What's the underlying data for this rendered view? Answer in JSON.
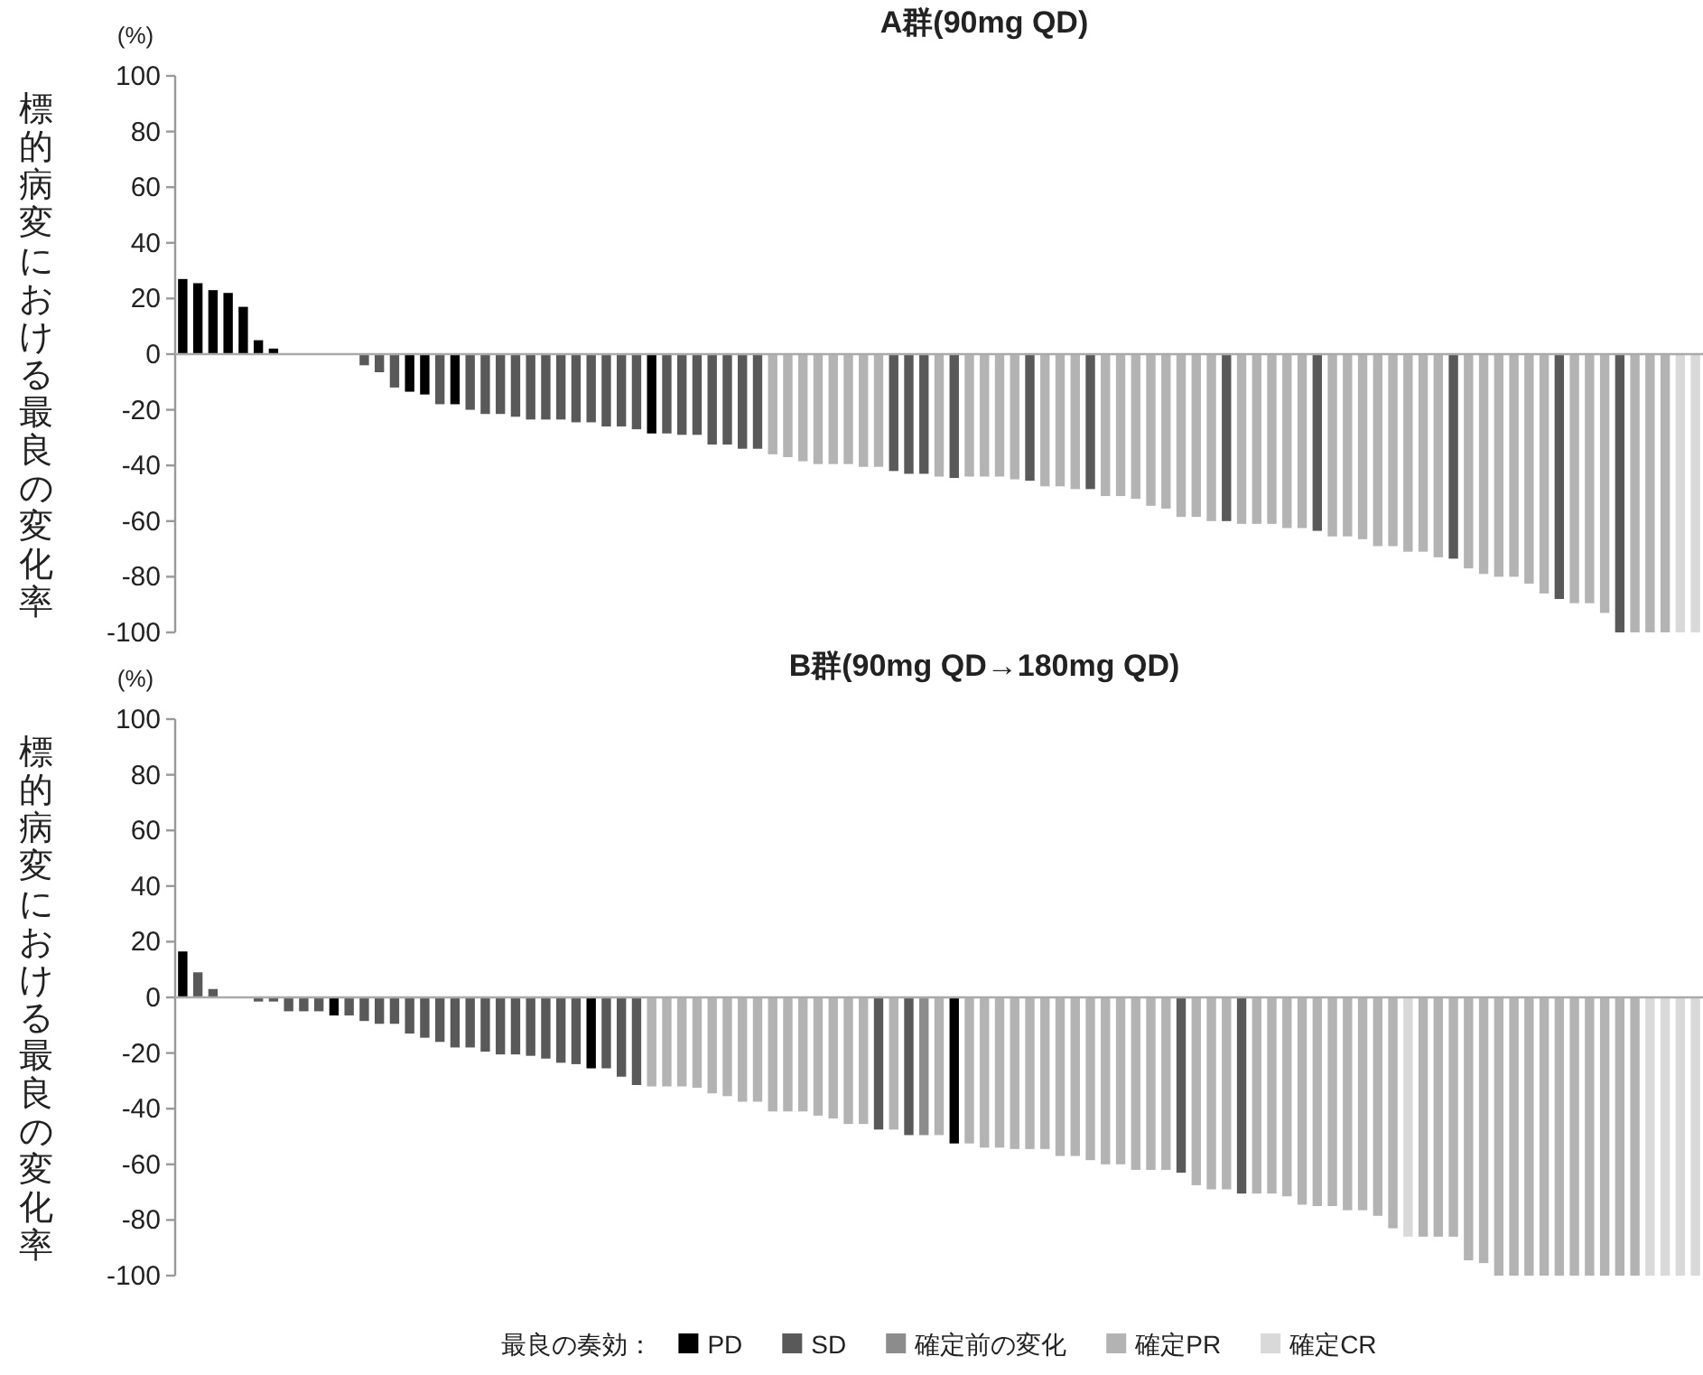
{
  "chart_data": [
    {
      "type": "bar",
      "title": "A群(90mg QD)",
      "ylabel": "標的病変における最良の変化率",
      "annotations": [
        "(%)"
      ],
      "categories": [
        null,
        null,
        null,
        null,
        null,
        null,
        null,
        null,
        null,
        null,
        null,
        null,
        null,
        null,
        null,
        null,
        null,
        null,
        null,
        null,
        null,
        null,
        null,
        null,
        null,
        null,
        null,
        null,
        null,
        null,
        null,
        null,
        null,
        null,
        null,
        null,
        null,
        null,
        null,
        null,
        null,
        null,
        null,
        null,
        null,
        null,
        null,
        null,
        null,
        null,
        null,
        null,
        null,
        null,
        null,
        null,
        null,
        null,
        null,
        null,
        null,
        null,
        null,
        null,
        null,
        null,
        null,
        null,
        null,
        null,
        null,
        null,
        null,
        null,
        null,
        null,
        null,
        null,
        null,
        null,
        null,
        null,
        null,
        null,
        null,
        null,
        null,
        null,
        null,
        null,
        null,
        null,
        null,
        null,
        null,
        null,
        null,
        null,
        null,
        null,
        null
      ],
      "stacked": true,
      "ylim": [
        -100,
        100
      ],
      "yticks": [
        -100,
        -80,
        -60,
        -40,
        -20,
        0,
        20,
        40,
        60,
        80,
        100
      ],
      "series": [
        {
          "color": "#000000",
          "values": [
            27,
            25.5,
            23,
            22,
            17,
            5,
            2,
            null,
            null,
            null,
            null,
            null,
            null,
            null,
            null,
            -13.5,
            -14.5,
            null,
            -18,
            null,
            null,
            null,
            null,
            null,
            null,
            null,
            null,
            null,
            null,
            null,
            null,
            -28.5,
            null,
            null,
            null,
            null,
            null,
            null,
            null,
            null,
            null,
            null,
            null,
            null,
            null,
            null,
            null,
            null,
            null,
            null,
            null,
            null,
            null,
            null,
            null,
            null,
            null,
            null,
            null,
            null,
            null,
            null,
            null,
            null,
            null,
            null,
            null,
            null,
            null,
            null,
            null,
            null,
            null,
            null,
            null,
            null,
            null,
            null,
            null,
            null,
            null,
            null,
            null,
            null,
            null,
            null,
            null,
            null,
            null,
            null,
            null,
            null,
            null,
            null,
            null,
            null,
            null,
            null,
            null,
            null,
            null
          ]
        },
        {
          "color": "#595959",
          "values": [
            null,
            null,
            null,
            null,
            null,
            null,
            null,
            null,
            null,
            null,
            null,
            null,
            -4,
            -6.5,
            -12,
            null,
            null,
            -18,
            null,
            -20,
            -21.5,
            -21.5,
            -22.5,
            -23.5,
            -23.5,
            -23.5,
            -24.5,
            -24.5,
            -26,
            -26,
            -27,
            null,
            -28.5,
            -29,
            -29,
            -32.5,
            -32.5,
            -34,
            -34,
            null,
            null,
            null,
            null,
            null,
            null,
            null,
            null,
            -42,
            -43,
            -43,
            null,
            -44.5,
            null,
            null,
            null,
            null,
            -45.5,
            null,
            null,
            null,
            -48.5,
            null,
            null,
            null,
            null,
            null,
            null,
            null,
            null,
            -60,
            null,
            null,
            null,
            null,
            null,
            -63.5,
            null,
            null,
            null,
            null,
            null,
            null,
            null,
            null,
            -73.5,
            null,
            null,
            null,
            null,
            null,
            null,
            -88,
            null,
            null,
            null,
            -100,
            null,
            null,
            null,
            null,
            null
          ]
        },
        {
          "color": "#b3b3b3",
          "values": [
            null,
            null,
            null,
            null,
            null,
            null,
            null,
            null,
            null,
            null,
            null,
            null,
            null,
            null,
            null,
            null,
            null,
            null,
            null,
            null,
            null,
            null,
            null,
            null,
            null,
            null,
            null,
            null,
            null,
            null,
            null,
            null,
            null,
            null,
            null,
            null,
            null,
            null,
            null,
            -36,
            -37,
            -38.5,
            -39.5,
            -39.5,
            -39.5,
            -40.5,
            -40.5,
            null,
            null,
            null,
            -44,
            null,
            -44,
            -44,
            -44,
            -45,
            null,
            -47.5,
            -47.5,
            -48.5,
            null,
            -51,
            -51,
            -52,
            -54.5,
            -55.5,
            -58.5,
            -58.5,
            -60,
            null,
            -61,
            -61,
            -61,
            -62.5,
            -62.5,
            null,
            -65.5,
            -65.5,
            -66.5,
            -69,
            -69,
            -71,
            -71,
            -73,
            null,
            -77,
            -79,
            -80,
            -80,
            -82.5,
            -86,
            null,
            -89.5,
            -89.5,
            -93,
            null,
            -100,
            -100,
            -100,
            null,
            null
          ]
        },
        {
          "color": "#d9d9d9",
          "values": [
            null,
            null,
            null,
            null,
            null,
            null,
            null,
            null,
            null,
            null,
            null,
            null,
            null,
            null,
            null,
            null,
            null,
            null,
            null,
            null,
            null,
            null,
            null,
            null,
            null,
            null,
            null,
            null,
            null,
            null,
            null,
            null,
            null,
            null,
            null,
            null,
            null,
            null,
            null,
            null,
            null,
            null,
            null,
            null,
            null,
            null,
            null,
            null,
            null,
            null,
            null,
            null,
            null,
            null,
            null,
            null,
            null,
            null,
            null,
            null,
            null,
            null,
            null,
            null,
            null,
            null,
            null,
            null,
            null,
            null,
            null,
            null,
            null,
            null,
            null,
            null,
            null,
            null,
            null,
            null,
            null,
            null,
            null,
            null,
            null,
            null,
            null,
            null,
            null,
            null,
            null,
            null,
            null,
            null,
            null,
            null,
            null,
            null,
            null,
            -100,
            -100
          ]
        }
      ]
    },
    {
      "type": "bar",
      "title": "B群(90mg QD→180mg QD)",
      "ylabel": "標的病変における最良の変化率",
      "annotations": [
        "(%)"
      ],
      "categories": [
        null,
        null,
        null,
        null,
        null,
        null,
        null,
        null,
        null,
        null,
        null,
        null,
        null,
        null,
        null,
        null,
        null,
        null,
        null,
        null,
        null,
        null,
        null,
        null,
        null,
        null,
        null,
        null,
        null,
        null,
        null,
        null,
        null,
        null,
        null,
        null,
        null,
        null,
        null,
        null,
        null,
        null,
        null,
        null,
        null,
        null,
        null,
        null,
        null,
        null,
        null,
        null,
        null,
        null,
        null,
        null,
        null,
        null,
        null,
        null,
        null,
        null,
        null,
        null,
        null,
        null,
        null,
        null,
        null,
        null,
        null,
        null,
        null,
        null,
        null,
        null,
        null,
        null,
        null,
        null,
        null,
        null,
        null,
        null,
        null,
        null,
        null,
        null,
        null,
        null,
        null,
        null,
        null,
        null,
        null,
        null,
        null,
        null,
        null,
        null,
        null
      ],
      "stacked": true,
      "ylim": [
        -100,
        100
      ],
      "yticks": [
        -100,
        -80,
        -60,
        -40,
        -20,
        0,
        20,
        40,
        60,
        80,
        100
      ],
      "legend": "bottom",
      "legend_title": "最良の奏効：",
      "series": [
        {
          "name": "PD",
          "color": "#000000",
          "values": [
            16.5,
            null,
            null,
            null,
            null,
            null,
            null,
            null,
            null,
            null,
            -6.5,
            null,
            null,
            null,
            null,
            null,
            null,
            null,
            null,
            null,
            null,
            null,
            null,
            null,
            null,
            null,
            null,
            -25.5,
            null,
            null,
            null,
            null,
            null,
            null,
            null,
            null,
            null,
            null,
            null,
            null,
            null,
            null,
            null,
            null,
            null,
            null,
            null,
            null,
            null,
            null,
            null,
            -52.5,
            null,
            null,
            null,
            null,
            null,
            null,
            null,
            null,
            null,
            null,
            null,
            null,
            null,
            null,
            null,
            null,
            null,
            null,
            null,
            null,
            null,
            null,
            null,
            null,
            null,
            null,
            null,
            null,
            null,
            null,
            null,
            null,
            null,
            null,
            null,
            null,
            null,
            null,
            null,
            null,
            null,
            null,
            null,
            null,
            null,
            null,
            null,
            null,
            null
          ]
        },
        {
          "name": "SD",
          "color": "#595959",
          "values": [
            null,
            9,
            3,
            null,
            null,
            -1.5,
            -1.5,
            -5,
            -5,
            -5,
            null,
            -6.5,
            -8.5,
            -9.5,
            -9.5,
            -13,
            -14.5,
            -16,
            -18,
            -18,
            -19.5,
            -20.5,
            -20.5,
            -21,
            -22,
            -23.5,
            -24,
            null,
            -25.5,
            -28.5,
            -31.5,
            null,
            null,
            null,
            null,
            null,
            null,
            null,
            null,
            null,
            null,
            null,
            null,
            null,
            null,
            null,
            -47.5,
            null,
            -49.5,
            null,
            null,
            null,
            null,
            null,
            null,
            null,
            null,
            null,
            null,
            null,
            null,
            null,
            null,
            null,
            null,
            null,
            -63,
            null,
            null,
            null,
            -70.5,
            null,
            null,
            null,
            null,
            null,
            null,
            null,
            null,
            null,
            null,
            null,
            null,
            null,
            null,
            null,
            null,
            null,
            null,
            null,
            null,
            null,
            null,
            null,
            null,
            null,
            null,
            null,
            null,
            null,
            null
          ]
        },
        {
          "name": "確定前の変化",
          "color": "#8c8c8c",
          "values": [
            null,
            null,
            null,
            null,
            null,
            null,
            null,
            null,
            null,
            null,
            null,
            null,
            null,
            null,
            null,
            null,
            null,
            null,
            null,
            null,
            null,
            null,
            null,
            null,
            null,
            null,
            null,
            null,
            null,
            null,
            null,
            null,
            null,
            null,
            null,
            null,
            null,
            null,
            null,
            null,
            null,
            null,
            null,
            null,
            null,
            null,
            null,
            null,
            null,
            -49.5,
            null,
            null,
            null,
            null,
            null,
            null,
            null,
            null,
            null,
            null,
            null,
            null,
            null,
            null,
            null,
            null,
            null,
            null,
            null,
            null,
            null,
            null,
            null,
            null,
            null,
            null,
            null,
            null,
            null,
            null,
            null,
            null,
            null,
            null,
            null,
            null,
            null,
            null,
            null,
            null,
            null,
            null,
            null,
            null,
            null,
            null,
            null,
            null,
            null,
            null,
            null
          ]
        },
        {
          "name": "確定PR",
          "color": "#b3b3b3",
          "values": [
            null,
            null,
            null,
            null,
            null,
            null,
            null,
            null,
            null,
            null,
            null,
            null,
            null,
            null,
            null,
            null,
            null,
            null,
            null,
            null,
            null,
            null,
            null,
            null,
            null,
            null,
            null,
            null,
            null,
            null,
            null,
            -32,
            -32,
            -32,
            -32.5,
            -34.5,
            -35.5,
            -37.5,
            -37.5,
            -41,
            -41,
            -41,
            -42.5,
            -43.5,
            -45.5,
            -45.5,
            null,
            -47.5,
            null,
            null,
            -49.5,
            null,
            -52.5,
            -54,
            -54,
            -54.5,
            -54.5,
            -54.5,
            -57,
            -57,
            -58.5,
            -60,
            -60,
            -62,
            -62,
            -62,
            null,
            -67.5,
            -69,
            -69,
            null,
            -70.5,
            -70.5,
            -71.5,
            -74.5,
            -75,
            -75,
            -76.5,
            -76.5,
            -78.5,
            -83,
            null,
            -86,
            -86,
            -86,
            -94.5,
            -95.5,
            -100,
            -100,
            -100,
            -100,
            -100,
            -100,
            -100,
            -100,
            -100,
            -100,
            null,
            null,
            null,
            null
          ]
        },
        {
          "name": "確定CR",
          "color": "#d9d9d9",
          "values": [
            null,
            null,
            null,
            null,
            null,
            null,
            null,
            null,
            null,
            null,
            null,
            null,
            null,
            null,
            null,
            null,
            null,
            null,
            null,
            null,
            null,
            null,
            null,
            null,
            null,
            null,
            null,
            null,
            null,
            null,
            null,
            null,
            null,
            null,
            null,
            null,
            null,
            null,
            null,
            null,
            null,
            null,
            null,
            null,
            null,
            null,
            null,
            null,
            null,
            null,
            null,
            null,
            null,
            null,
            null,
            null,
            null,
            null,
            null,
            null,
            null,
            null,
            null,
            null,
            null,
            null,
            null,
            null,
            null,
            null,
            null,
            null,
            null,
            null,
            null,
            null,
            null,
            null,
            null,
            null,
            null,
            -86,
            null,
            null,
            null,
            null,
            null,
            null,
            null,
            null,
            null,
            null,
            null,
            null,
            null,
            null,
            null,
            -100,
            -100,
            -100,
            -100
          ]
        }
      ]
    }
  ]
}
